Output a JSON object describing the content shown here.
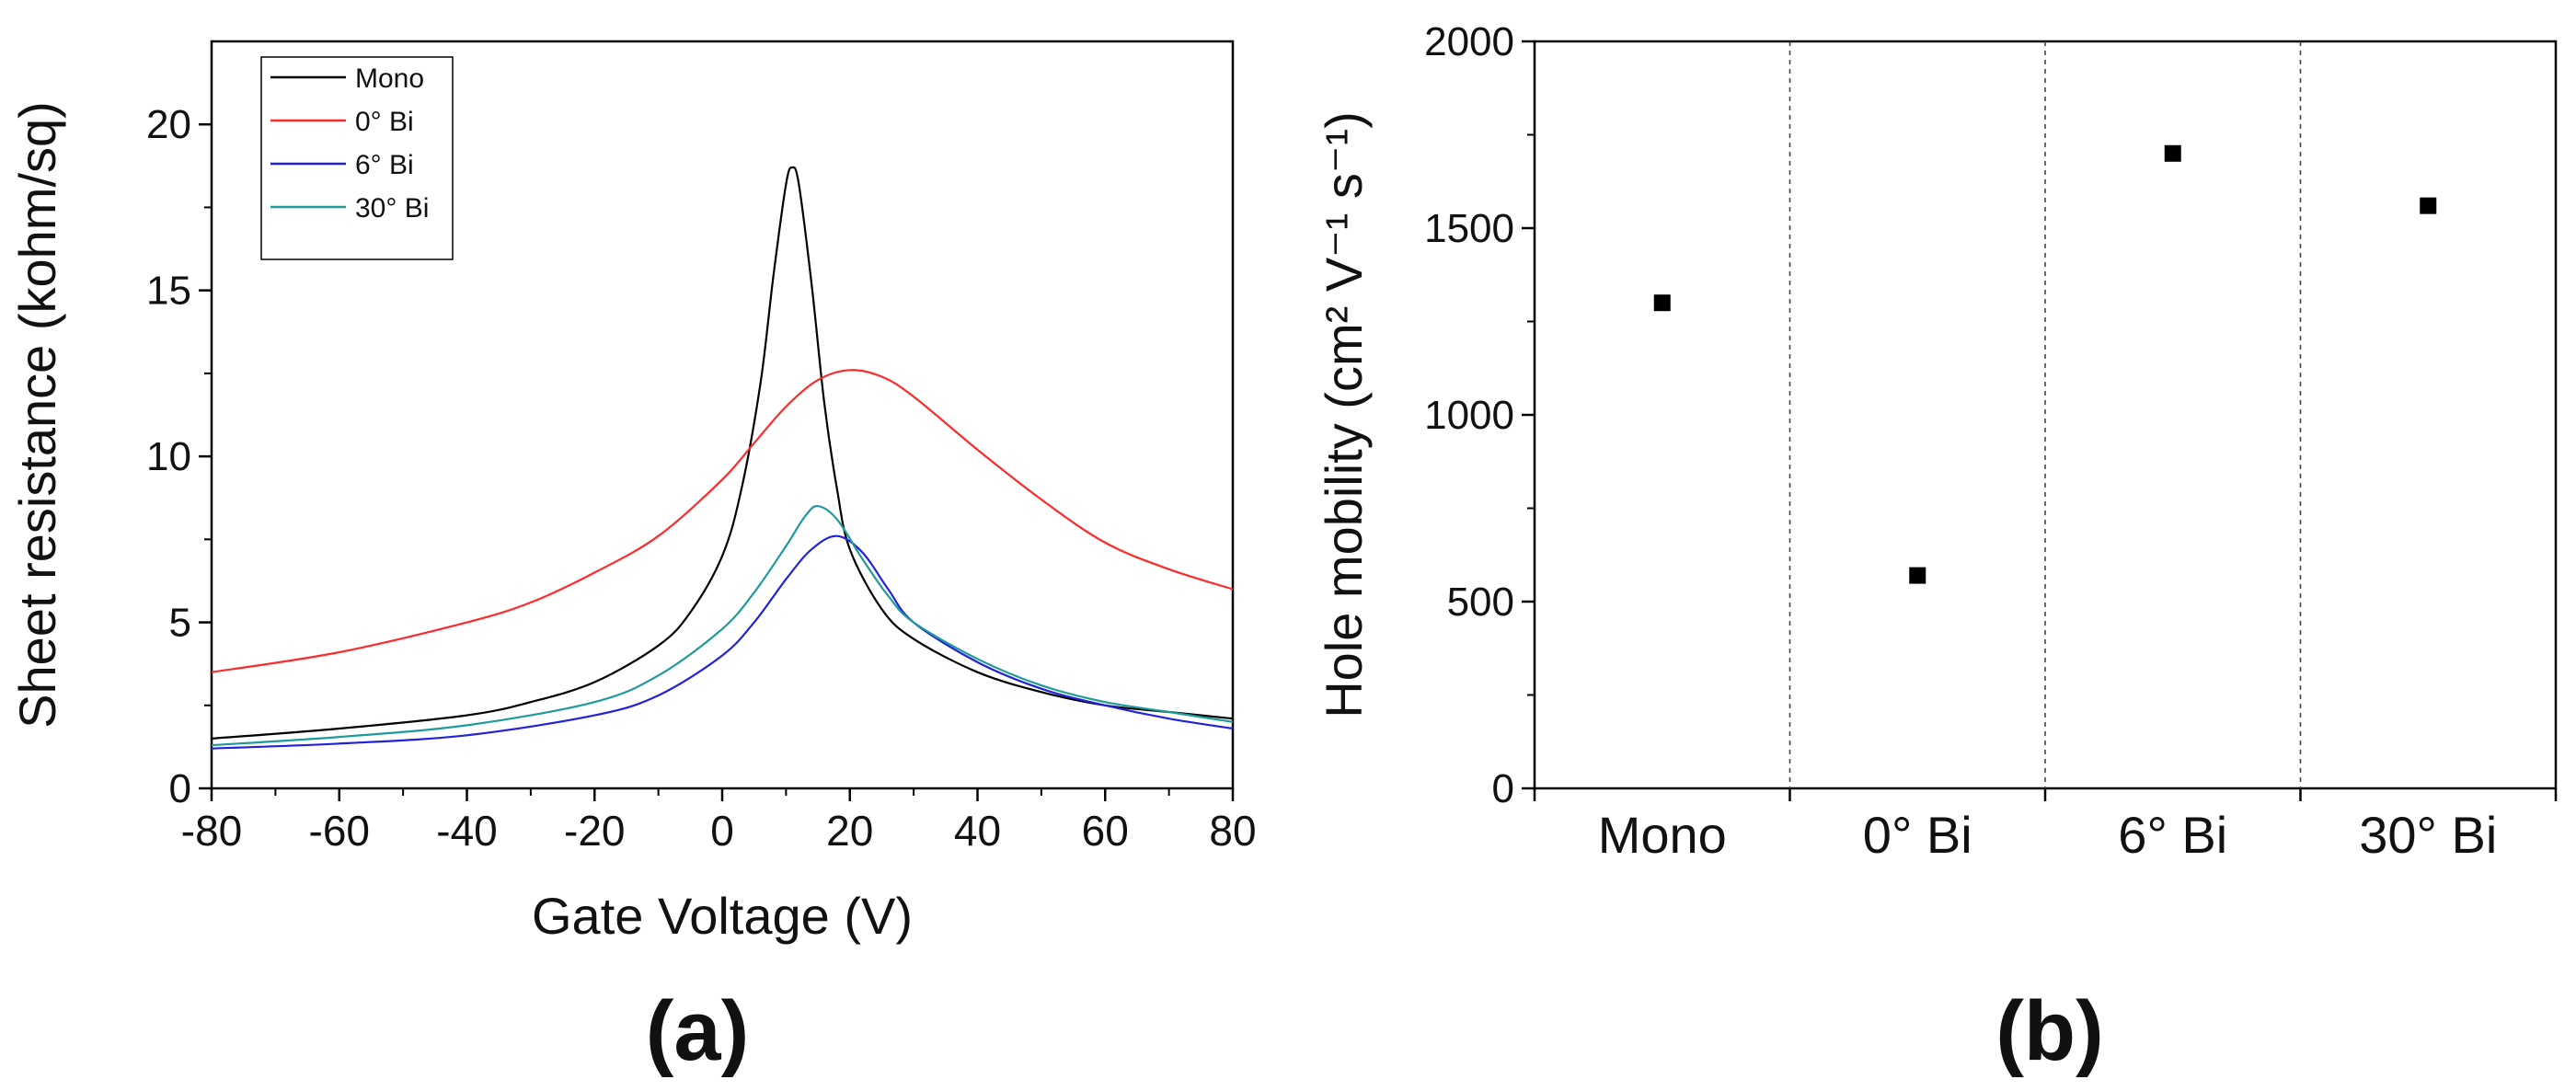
{
  "chart_data": [
    {
      "type": "line",
      "panel_label": "(a)",
      "xlabel": "Gate Voltage (V)",
      "ylabel": "Sheet resistance (kohm/sq)",
      "xlim": [
        -80,
        80
      ],
      "ylim": [
        0,
        22.5
      ],
      "xticks": [
        -80,
        -60,
        -40,
        -20,
        0,
        20,
        40,
        60,
        80
      ],
      "xtick_labels": [
        "-80",
        "-60",
        "-40",
        "-20",
        "0",
        "20",
        "40",
        "60",
        "80"
      ],
      "yticks": [
        0,
        5,
        10,
        15,
        20
      ],
      "ytick_labels": [
        "0",
        "5",
        "10",
        "15",
        "20"
      ],
      "legend_position": "top-left",
      "series": [
        {
          "name": "Mono",
          "color": "#000000",
          "x": [
            -80,
            -60,
            -40,
            -30,
            -20,
            -10,
            -5,
            0,
            3,
            6,
            8,
            10,
            11,
            12,
            14,
            16,
            18,
            20,
            25,
            30,
            40,
            50,
            60,
            70,
            80
          ],
          "y": [
            1.5,
            1.8,
            2.2,
            2.6,
            3.2,
            4.3,
            5.3,
            7.0,
            9.0,
            12.2,
            15.4,
            18.2,
            18.7,
            18.2,
            15.2,
            11.6,
            9.0,
            7.2,
            5.4,
            4.5,
            3.5,
            2.9,
            2.5,
            2.3,
            2.1
          ]
        },
        {
          "name": "0° Bi",
          "color": "#ff2b2b",
          "x": [
            -80,
            -60,
            -40,
            -30,
            -20,
            -10,
            0,
            5,
            10,
            15,
            20,
            25,
            30,
            40,
            50,
            60,
            70,
            80
          ],
          "y": [
            3.5,
            4.1,
            5.0,
            5.6,
            6.5,
            7.6,
            9.3,
            10.4,
            11.5,
            12.3,
            12.6,
            12.4,
            11.8,
            10.2,
            8.7,
            7.4,
            6.6,
            6.0
          ]
        },
        {
          "name": "6° Bi",
          "color": "#2222dd",
          "x": [
            -80,
            -60,
            -40,
            -20,
            -10,
            0,
            5,
            10,
            14,
            18,
            22,
            26,
            30,
            40,
            50,
            60,
            70,
            80
          ],
          "y": [
            1.2,
            1.35,
            1.6,
            2.2,
            2.8,
            4.0,
            5.0,
            6.3,
            7.2,
            7.6,
            7.1,
            6.0,
            5.0,
            3.8,
            3.0,
            2.5,
            2.1,
            1.8
          ]
        },
        {
          "name": "30° Bi",
          "color": "#1f9a9a",
          "x": [
            -80,
            -60,
            -40,
            -20,
            -10,
            0,
            5,
            10,
            13,
            15,
            18,
            22,
            26,
            30,
            40,
            50,
            60,
            70,
            80
          ],
          "y": [
            1.3,
            1.55,
            1.9,
            2.6,
            3.4,
            4.8,
            5.9,
            7.3,
            8.2,
            8.5,
            8.1,
            6.9,
            5.8,
            5.0,
            3.9,
            3.1,
            2.6,
            2.3,
            2.0
          ]
        }
      ]
    },
    {
      "type": "scatter",
      "panel_label": "(b)",
      "xlabel": "",
      "ylabel": "Hole mobility (cm² V⁻¹ s⁻¹)",
      "ylim": [
        0,
        2000
      ],
      "yticks": [
        0,
        500,
        1000,
        1500,
        2000
      ],
      "ytick_labels": [
        "0",
        "500",
        "1000",
        "1500",
        "2000"
      ],
      "categories": [
        "Mono",
        "0° Bi",
        "6° Bi",
        "30° Bi"
      ],
      "values": [
        1300,
        570,
        1700,
        1560
      ],
      "marker_color": "#000000",
      "grid": "vertical dashed separators between categories"
    }
  ]
}
